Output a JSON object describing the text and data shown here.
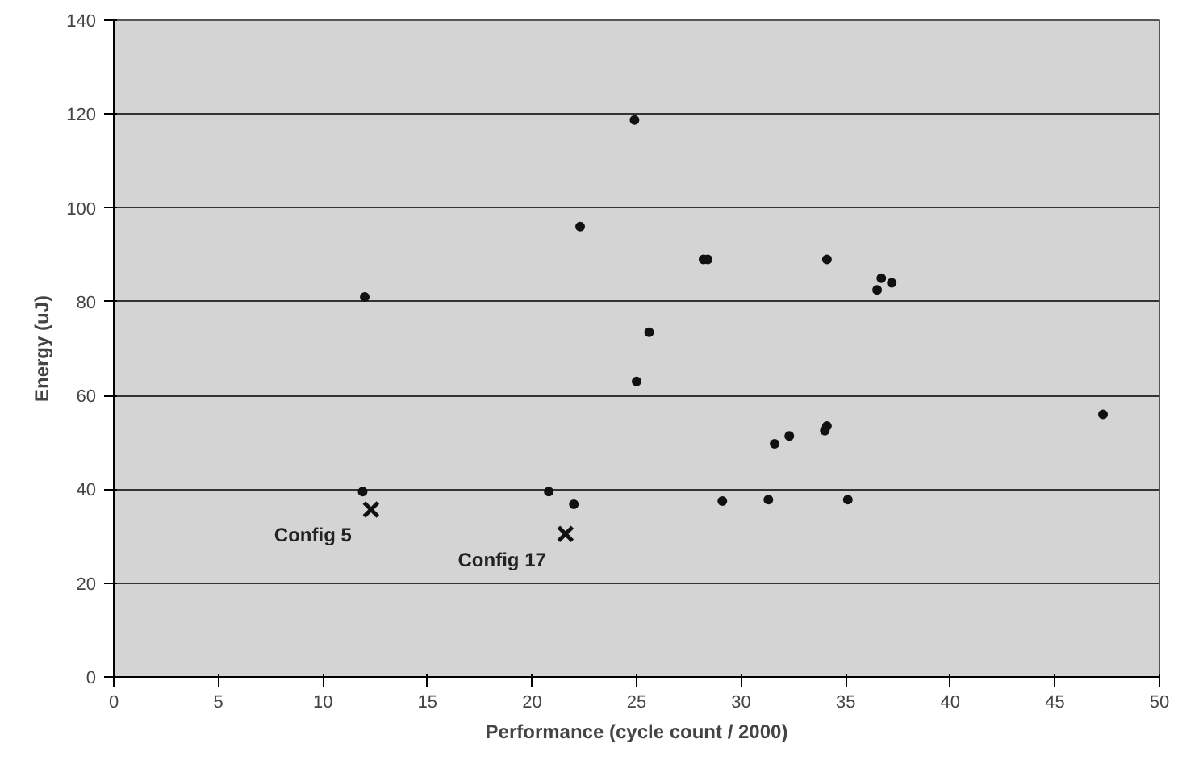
{
  "chart_data": {
    "type": "scatter",
    "xlabel": "Performance (cycle count / 2000)",
    "ylabel": "Energy (uJ)",
    "xlim": [
      0,
      50
    ],
    "xticks": [
      0,
      5,
      10,
      15,
      20,
      25,
      30,
      35,
      40,
      45,
      50
    ],
    "ylim": [
      0,
      140
    ],
    "yticks": [
      0,
      20,
      40,
      60,
      80,
      100,
      120,
      140
    ],
    "grid": "y",
    "marker": "circle",
    "series": [
      {
        "color": "#111111",
        "x": [
          12,
          11.9,
          22.3,
          24.9,
          28.2,
          28.4,
          25.6,
          25.0,
          20.8,
          22.0,
          29.1,
          34.1,
          36.7,
          36.5,
          37.2,
          47.3,
          32.3,
          31.6,
          34.1,
          34.0,
          31.3,
          35.1
        ],
        "values": [
          81,
          39.5,
          96,
          118.7,
          89,
          89,
          73.5,
          63,
          39.5,
          36.8,
          37.5,
          89,
          85,
          82.5,
          84,
          56,
          51.4,
          49.7,
          53.5,
          52.5,
          37.8,
          37.8
        ]
      },
      {
        "color": "#111111",
        "marker": "cross",
        "x": [
          12.3,
          21.6
        ],
        "values": [
          35.7,
          30.5
        ]
      }
    ],
    "annotations": [
      {
        "text": "Config 5",
        "x": 12.3,
        "y": 35.7
      },
      {
        "text": "Config 17",
        "x": 21.6,
        "y": 30.5
      }
    ]
  }
}
